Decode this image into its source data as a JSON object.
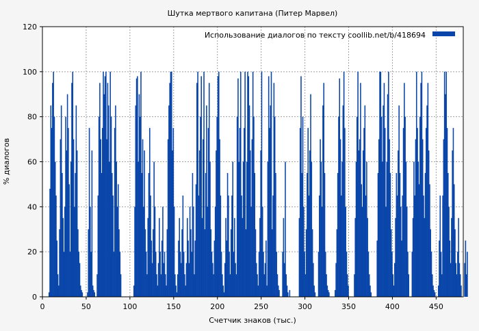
{
  "chart_data": {
    "type": "bar",
    "title": "Шутка мертвого капитана (Питер Марвел)",
    "xlabel": "Счетчик знаков (тыс.)",
    "ylabel": "% диалогов",
    "xlim": [
      0,
      481
    ],
    "ylim": [
      0,
      120
    ],
    "xticks": [
      0,
      50,
      100,
      150,
      200,
      250,
      300,
      350,
      400,
      450
    ],
    "yticks": [
      0,
      20,
      40,
      60,
      80,
      100,
      120
    ],
    "grid": true,
    "legend_position": "top-right",
    "bar_color": "#0a46aa",
    "series": [
      {
        "name": "Использование диалогов по тексту  coollib.net/b/418694",
        "x_start": 0,
        "x_step": 1,
        "values": [
          0,
          0,
          0,
          0,
          0,
          0,
          0,
          2,
          48,
          85,
          75,
          95,
          100,
          80,
          60,
          45,
          25,
          10,
          5,
          30,
          70,
          85,
          55,
          35,
          20,
          40,
          80,
          65,
          90,
          75,
          50,
          20,
          60,
          95,
          100,
          70,
          40,
          55,
          85,
          65,
          30,
          20,
          15,
          5,
          3,
          2,
          0,
          0,
          0,
          0,
          0,
          2,
          30,
          75,
          40,
          20,
          65,
          5,
          3,
          2,
          0,
          0,
          10,
          45,
          80,
          95,
          70,
          55,
          75,
          100,
          90,
          98,
          100,
          70,
          95,
          85,
          60,
          100,
          80,
          55,
          45,
          20,
          75,
          85,
          60,
          40,
          50,
          30,
          20,
          10,
          0,
          0,
          0,
          0,
          0,
          0,
          0,
          0,
          0,
          0,
          0,
          0,
          0,
          0,
          5,
          40,
          85,
          97,
          98,
          60,
          90,
          80,
          100,
          55,
          70,
          40,
          65,
          30,
          20,
          10,
          35,
          55,
          75,
          45,
          25,
          15,
          30,
          60,
          40,
          20,
          10,
          5,
          15,
          35,
          20,
          10,
          25,
          40,
          15,
          20,
          10,
          5,
          30,
          70,
          85,
          95,
          100,
          100,
          65,
          75,
          40,
          10,
          5,
          2,
          10,
          25,
          35,
          20,
          15,
          30,
          45,
          20,
          10,
          5,
          15,
          35,
          25,
          15,
          40,
          30,
          20,
          55,
          40,
          10,
          25,
          50,
          95,
          100,
          45,
          65,
          80,
          98,
          35,
          70,
          100,
          30,
          55,
          85,
          40,
          75,
          95,
          60,
          30,
          20,
          15,
          10,
          25,
          40,
          65,
          80,
          98,
          100,
          70,
          45,
          20,
          10,
          5,
          2,
          15,
          35,
          25,
          55,
          45,
          20,
          10,
          30,
          45,
          60,
          20,
          35,
          15,
          10,
          80,
          97,
          60,
          75,
          100,
          45,
          35,
          60,
          75,
          100,
          30,
          60,
          100,
          98,
          85,
          65,
          40,
          70,
          100,
          80,
          55,
          30,
          15,
          10,
          5,
          20,
          35,
          65,
          100,
          40,
          20,
          10,
          15,
          25,
          5,
          60,
          98,
          75,
          85,
          100,
          30,
          45,
          95,
          80,
          55,
          20,
          10,
          5,
          3,
          0,
          0,
          0,
          20,
          35,
          15,
          60,
          10,
          5,
          2,
          0,
          3,
          0,
          0,
          0,
          0,
          0,
          0,
          0,
          0,
          0,
          0,
          35,
          75,
          98,
          55,
          80,
          40,
          20,
          10,
          30,
          55,
          75,
          45,
          65,
          90,
          60,
          30,
          15,
          5,
          2,
          0,
          0,
          0,
          20,
          45,
          70,
          60,
          40,
          85,
          95,
          55,
          20,
          10,
          5,
          3,
          2,
          0,
          0,
          0,
          0,
          0,
          0,
          3,
          15,
          30,
          55,
          80,
          97,
          70,
          45,
          60,
          85,
          100,
          75,
          40,
          20,
          10,
          5,
          0,
          0,
          0,
          0,
          0,
          0,
          10,
          35,
          60,
          80,
          100,
          65,
          70,
          95,
          50,
          40,
          65,
          75,
          85,
          45,
          60,
          35,
          20,
          10,
          5,
          2,
          0,
          0,
          0,
          0,
          0,
          0,
          25,
          55,
          70,
          100,
          100,
          80,
          60,
          85,
          95,
          75,
          40,
          60,
          90,
          100,
          70,
          55,
          30,
          20,
          10,
          5,
          15,
          35,
          55,
          45,
          65,
          85,
          55,
          40,
          25,
          45,
          75,
          95,
          80,
          60,
          40,
          20,
          10,
          0,
          0,
          0,
          20,
          35,
          60,
          45,
          70,
          100,
          75,
          60,
          50,
          80,
          95,
          100,
          70,
          45,
          35,
          55,
          75,
          85,
          95,
          65,
          50,
          30,
          20,
          10,
          5,
          3,
          2,
          0,
          0,
          0,
          5,
          25,
          45,
          20,
          10,
          45,
          70,
          100,
          90,
          100,
          75,
          55,
          40,
          25,
          15,
          35,
          65,
          75,
          50,
          30,
          15,
          10,
          20,
          35,
          15,
          10,
          5,
          0,
          0,
          0,
          15,
          25,
          10,
          20
        ]
      }
    ]
  }
}
